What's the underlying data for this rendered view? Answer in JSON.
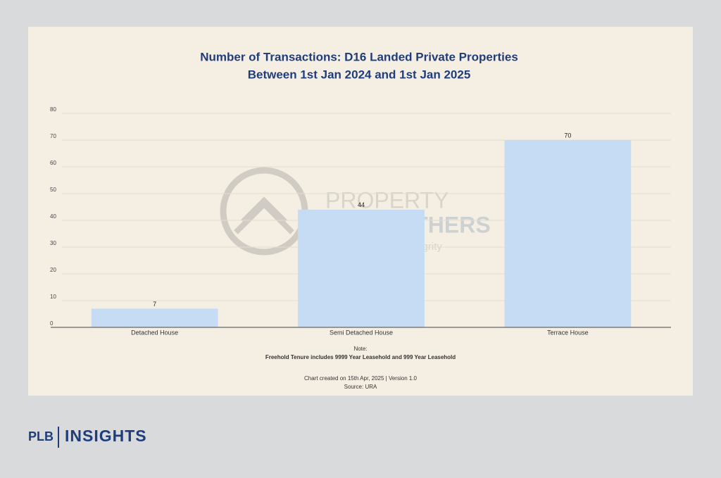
{
  "chart_data": {
    "type": "bar",
    "title": "Number of Transactions: D16 Landed Private Properties",
    "subtitle": "Between 1st Jan 2024 and 1st Jan 2025",
    "categories": [
      "Detached House",
      "Semi Detached House",
      "Terrace House"
    ],
    "values": [
      7,
      44,
      70
    ],
    "color": "#c6dcf4",
    "ylim": [
      0,
      80
    ],
    "yticks": [
      0,
      10,
      20,
      30,
      40,
      50,
      60,
      70,
      80
    ],
    "grid": true,
    "notes": [
      "Note:",
      "Freehold Tenure includes 9999 Year Leasehold and 999 Year Leasehold",
      "Chart created on 15th Apr, 2025 | Version 1.0",
      "Source: URA"
    ],
    "watermark": {
      "line1": "PROPERTY",
      "line2": "LIMBROTHERS",
      "tagline": "Real Estate with Integrity"
    }
  },
  "branding": {
    "left": "PLB",
    "right": "INSIGHTS"
  }
}
